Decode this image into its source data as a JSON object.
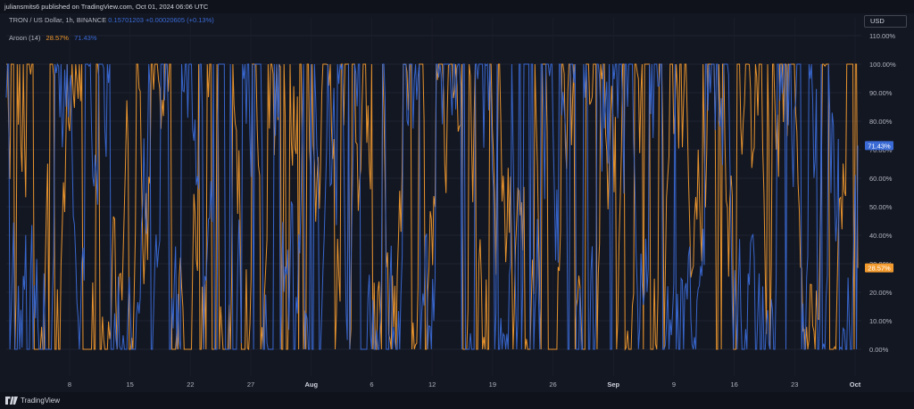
{
  "header": {
    "publish_text": "juliansmits6 published on TradingView.com, Oct 01, 2024 06:06 UTC"
  },
  "symbol": {
    "label": "TRON / US Dollar, 1h, BINANCE",
    "price": "0.15701203",
    "change": "+0.00020605 (+0.13%)"
  },
  "indicator": {
    "name": "Aroon (14)",
    "down_value": "28.57%",
    "up_value": "71.43%"
  },
  "currency_button": "USD",
  "footer": {
    "brand": "TradingView"
  },
  "colors": {
    "background": "#131722",
    "aroon_up": "#3a6ad6",
    "aroon_down": "#f29a2e"
  },
  "chart_data": {
    "type": "line",
    "ylim": [
      0,
      110
    ],
    "y_ticks": [
      "110.00%",
      "100.00%",
      "90.00%",
      "80.00%",
      "70.00%",
      "60.00%",
      "50.00%",
      "40.00%",
      "30.00%",
      "20.00%",
      "10.00%",
      "0.00%"
    ],
    "x_ticks": [
      "8",
      "15",
      "22",
      "27",
      "Aug",
      "6",
      "12",
      "19",
      "26",
      "Sep",
      "9",
      "16",
      "23",
      "Oct"
    ],
    "bold_x_ticks": [
      "Aug",
      "Sep",
      "Oct"
    ],
    "series": [
      {
        "name": "Aroon Up",
        "color": "#3a6ad6",
        "last_value": 71.43,
        "last_label": "71.43%"
      },
      {
        "name": "Aroon Down",
        "color": "#f29a2e",
        "last_value": 28.57,
        "last_label": "28.57%"
      }
    ],
    "grid": true
  }
}
